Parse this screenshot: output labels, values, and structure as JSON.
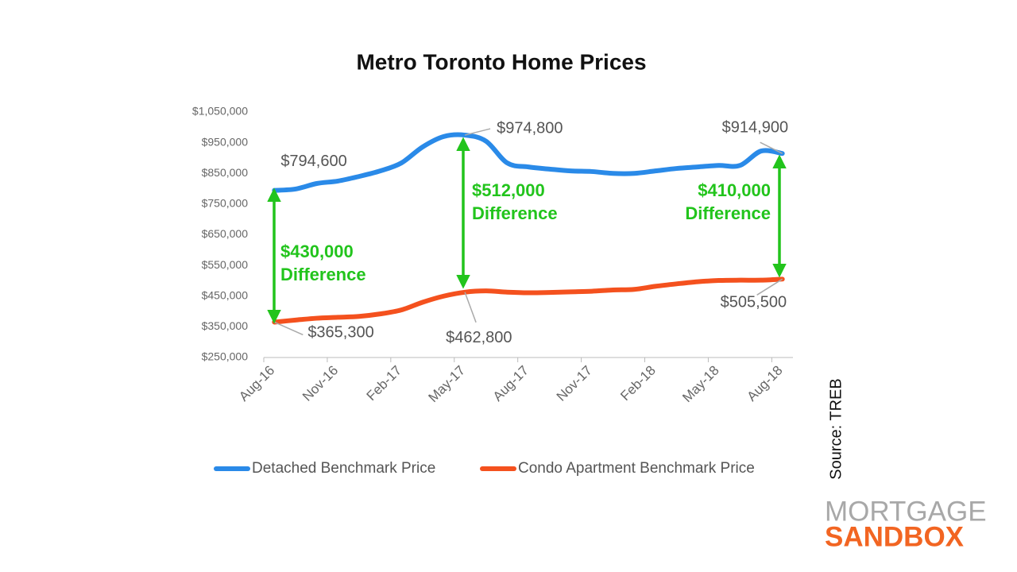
{
  "chart_data": {
    "type": "line",
    "title": "Metro Toronto Home Prices",
    "categories": [
      "Aug-16",
      null,
      null,
      "Nov-16",
      null,
      null,
      "Feb-17",
      null,
      null,
      "May-17",
      null,
      null,
      "Aug-17",
      null,
      null,
      "Nov-17",
      null,
      null,
      "Feb-18",
      null,
      null,
      "May-18",
      null,
      null,
      "Aug-18"
    ],
    "series": [
      {
        "name": "Detached Benchmark Price",
        "color": "#2a8ae8",
        "values": [
          794600,
          799000,
          817000,
          825000,
          840000,
          858000,
          884000,
          936000,
          970000,
          974800,
          955000,
          884000,
          871000,
          864000,
          858000,
          856000,
          850000,
          850000,
          858000,
          866000,
          871000,
          876000,
          876000,
          923000,
          914900
        ],
        "value_labels": [
          "$794,600",
          null,
          null,
          null,
          null,
          null,
          null,
          null,
          null,
          "$974,800",
          null,
          null,
          null,
          null,
          null,
          null,
          null,
          null,
          null,
          null,
          null,
          null,
          null,
          null,
          "$914,900"
        ]
      },
      {
        "name": "Condo Apartment Benchmark Price",
        "color": "#f4511e",
        "values": [
          365300,
          372000,
          378000,
          381000,
          384000,
          392000,
          405000,
          430000,
          450000,
          462800,
          467000,
          463000,
          461000,
          462000,
          464000,
          466000,
          470000,
          472000,
          482000,
          490000,
          497000,
          501000,
          502000,
          502000,
          505500
        ],
        "value_labels": [
          "$365,300",
          null,
          null,
          null,
          null,
          null,
          null,
          null,
          null,
          "$462,800",
          null,
          null,
          null,
          null,
          null,
          null,
          null,
          null,
          null,
          null,
          null,
          null,
          null,
          null,
          "$505,500"
        ]
      }
    ],
    "ylim": [
      250000,
      1050000
    ],
    "yticks": [
      {
        "value": 250000,
        "label": "$250,000"
      },
      {
        "value": 350000,
        "label": "$350,000"
      },
      {
        "value": 450000,
        "label": "$450,000"
      },
      {
        "value": 550000,
        "label": "$550,000"
      },
      {
        "value": 650000,
        "label": "$650,000"
      },
      {
        "value": 750000,
        "label": "$750,000"
      },
      {
        "value": 850000,
        "label": "$850,000"
      },
      {
        "value": 950000,
        "label": "$950,000"
      },
      {
        "value": 1050000,
        "label": "$1,050,000"
      }
    ],
    "grid": false,
    "legend": "bottom",
    "annotations": [
      {
        "amount": "$430,000",
        "text": "Difference"
      },
      {
        "amount": "$512,000",
        "text": "Difference"
      },
      {
        "amount": "$410,000",
        "text": "Difference"
      }
    ]
  },
  "source": "Source: TREB",
  "logo": {
    "line1": "MORTGAGE",
    "line2": "SANDBOX"
  }
}
